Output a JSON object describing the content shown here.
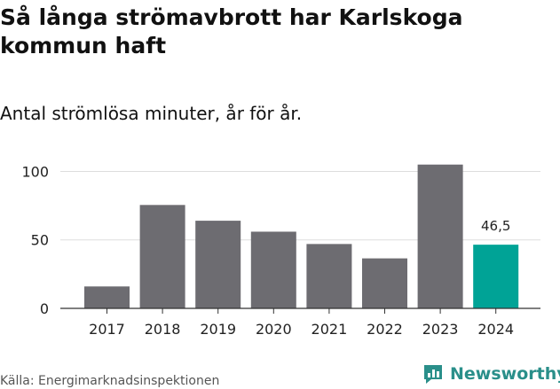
{
  "header": {
    "title": "Så långa strömavbrott har Karlskoga kommun haft",
    "subtitle": "Antal strömlösa minuter, år för år."
  },
  "footer": {
    "source": "Källa: Energimarknadsinspektionen",
    "brand": "Newsworthy"
  },
  "colors": {
    "bar": "#6d6c71",
    "highlight": "#00a396",
    "grid": "#dddddd",
    "axis": "#333333"
  },
  "chart_data": {
    "type": "bar",
    "categories": [
      "2017",
      "2018",
      "2019",
      "2020",
      "2021",
      "2022",
      "2023",
      "2024"
    ],
    "values": [
      16,
      75.5,
      64,
      56,
      47,
      36.5,
      105,
      46.5
    ],
    "highlight_index": 7,
    "data_labels": [
      {
        "index": 7,
        "text": "46,5"
      }
    ],
    "title": "Så långa strömavbrott har Karlskoga kommun haft",
    "subtitle": "Antal strömlösa minuter, år för år.",
    "xlabel": "",
    "ylabel": "",
    "ylim": [
      0,
      110
    ],
    "yticks": [
      0,
      50,
      100
    ],
    "grid": true,
    "legend": "none"
  }
}
